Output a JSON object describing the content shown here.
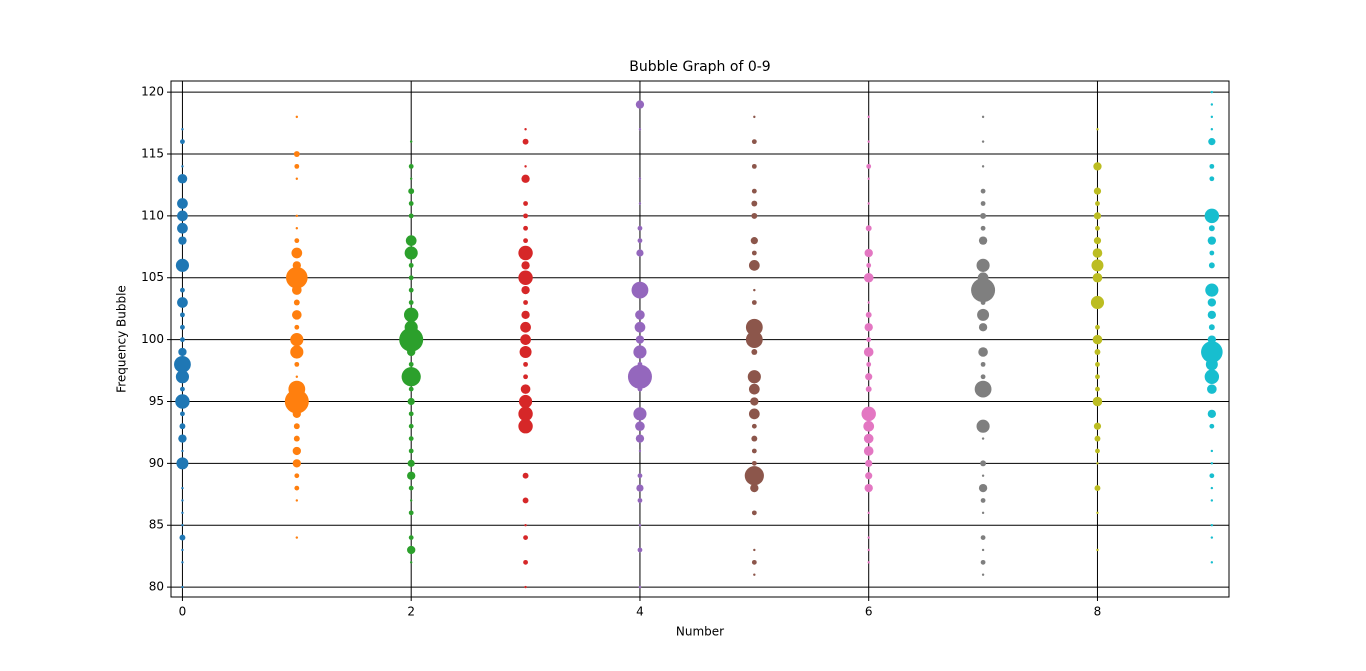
{
  "chart_data": {
    "type": "bubble",
    "title": "Bubble Graph of 0-9",
    "x_label": "Number",
    "y_label": "Frequency Bubble",
    "xlim": [
      -0.1,
      9.15
    ],
    "ylim": [
      79.2,
      120.9
    ],
    "xticks": [
      0,
      2,
      4,
      6,
      8
    ],
    "yticks": [
      80,
      85,
      90,
      95,
      100,
      105,
      110,
      115,
      120
    ],
    "grid": true,
    "series": [
      {
        "x": 0,
        "color": "#1f77b4",
        "values": [
          80,
          82,
          83,
          84,
          85,
          86,
          87,
          88,
          90,
          91,
          92,
          93,
          94,
          95,
          96,
          97,
          98,
          99,
          100,
          101,
          102,
          103,
          104,
          106,
          108,
          109,
          110,
          111,
          113,
          114,
          116,
          117
        ],
        "sizes": [
          1,
          1,
          1,
          6,
          1,
          1,
          1,
          1,
          25,
          1,
          12,
          6,
          4,
          36,
          4,
          30,
          49,
          12,
          4,
          4,
          4,
          20,
          4,
          30,
          12,
          20,
          20,
          20,
          16,
          1,
          4,
          1
        ]
      },
      {
        "x": 1,
        "color": "#ff7f0e",
        "values": [
          84,
          87,
          88,
          89,
          90,
          91,
          92,
          93,
          94,
          95,
          96,
          97,
          98,
          99,
          100,
          101,
          102,
          103,
          104,
          105,
          106,
          107,
          108,
          109,
          110,
          113,
          114,
          115,
          118
        ],
        "sizes": [
          1,
          1,
          4,
          4,
          12,
          12,
          6,
          6,
          12,
          100,
          49,
          1,
          4,
          30,
          30,
          4,
          16,
          6,
          16,
          81,
          12,
          20,
          4,
          1,
          1,
          1,
          4,
          6,
          1
        ]
      },
      {
        "x": 2,
        "color": "#2ca02c",
        "values": [
          82,
          83,
          84,
          86,
          87,
          88,
          89,
          90,
          91,
          92,
          93,
          94,
          95,
          96,
          97,
          98,
          99,
          100,
          101,
          102,
          103,
          104,
          105,
          106,
          107,
          108,
          110,
          111,
          112,
          113,
          114,
          116
        ],
        "sizes": [
          1,
          12,
          4,
          4,
          1,
          4,
          12,
          9,
          4,
          4,
          4,
          4,
          9,
          4,
          64,
          4,
          12,
          100,
          30,
          36,
          4,
          4,
          4,
          4,
          30,
          20,
          4,
          4,
          6,
          1,
          4,
          1
        ]
      },
      {
        "x": 3,
        "color": "#d62728",
        "values": [
          80,
          82,
          84,
          85,
          87,
          89,
          93,
          94,
          95,
          96,
          97,
          98,
          99,
          100,
          101,
          102,
          103,
          104,
          105,
          106,
          107,
          108,
          109,
          110,
          111,
          113,
          114,
          116,
          117
        ],
        "sizes": [
          1,
          4,
          4,
          1,
          6,
          6,
          36,
          36,
          30,
          16,
          4,
          4,
          25,
          20,
          20,
          12,
          4,
          12,
          36,
          12,
          36,
          4,
          4,
          4,
          4,
          12,
          1,
          6,
          1
        ]
      },
      {
        "x": 4,
        "color": "#9467bd",
        "values": [
          80,
          83,
          85,
          87,
          88,
          89,
          91,
          92,
          93,
          94,
          96,
          97,
          98,
          99,
          100,
          101,
          102,
          104,
          107,
          108,
          109,
          111,
          113,
          117,
          119
        ],
        "sizes": [
          1,
          4,
          1,
          4,
          9,
          4,
          1,
          12,
          16,
          30,
          4,
          100,
          4,
          30,
          12,
          20,
          16,
          49,
          9,
          4,
          4,
          1,
          1,
          1,
          12
        ]
      },
      {
        "x": 5,
        "color": "#8c564b",
        "values": [
          81,
          82,
          83,
          86,
          88,
          89,
          90,
          91,
          92,
          93,
          94,
          95,
          96,
          97,
          99,
          100,
          101,
          103,
          104,
          106,
          107,
          108,
          110,
          111,
          112,
          114,
          116,
          118
        ],
        "sizes": [
          1,
          4,
          1,
          4,
          12,
          64,
          4,
          4,
          6,
          4,
          20,
          12,
          20,
          30,
          6,
          49,
          49,
          4,
          1,
          20,
          4,
          9,
          6,
          6,
          4,
          4,
          4,
          1
        ]
      },
      {
        "x": 6,
        "color": "#e377c2",
        "values": [
          82,
          83,
          84,
          86,
          88,
          89,
          90,
          91,
          92,
          93,
          94,
          96,
          97,
          98,
          99,
          100,
          101,
          102,
          103,
          105,
          106,
          107,
          109,
          111,
          113,
          114,
          116,
          118
        ],
        "sizes": [
          1,
          1,
          1,
          1,
          12,
          9,
          9,
          16,
          16,
          20,
          36,
          6,
          9,
          4,
          16,
          4,
          12,
          6,
          1,
          16,
          4,
          12,
          6,
          1,
          1,
          4,
          1,
          1
        ]
      },
      {
        "x": 7,
        "color": "#7f7f7f",
        "values": [
          81,
          82,
          83,
          84,
          86,
          87,
          88,
          89,
          90,
          92,
          93,
          96,
          97,
          98,
          99,
          101,
          102,
          103,
          104,
          105,
          106,
          108,
          109,
          110,
          111,
          112,
          114,
          116,
          118
        ],
        "sizes": [
          1,
          4,
          1,
          4,
          1,
          4,
          12,
          1,
          6,
          1,
          30,
          49,
          4,
          4,
          16,
          12,
          25,
          4,
          100,
          20,
          30,
          12,
          4,
          6,
          4,
          4,
          1,
          1,
          1
        ]
      },
      {
        "x": 8,
        "color": "#bcbd22",
        "values": [
          83,
          86,
          88,
          90,
          91,
          92,
          93,
          95,
          96,
          97,
          98,
          99,
          100,
          101,
          103,
          105,
          106,
          107,
          108,
          109,
          110,
          111,
          112,
          114,
          117
        ],
        "sizes": [
          1,
          1,
          6,
          1,
          4,
          6,
          9,
          16,
          4,
          4,
          4,
          6,
          16,
          4,
          30,
          16,
          25,
          16,
          9,
          4,
          9,
          4,
          9,
          12,
          1
        ]
      },
      {
        "x": 9,
        "color": "#17becf",
        "values": [
          82,
          84,
          85,
          87,
          88,
          89,
          90,
          91,
          93,
          94,
          96,
          97,
          98,
          99,
          100,
          101,
          102,
          103,
          104,
          106,
          107,
          108,
          109,
          110,
          113,
          114,
          116,
          117,
          118,
          119,
          120
        ],
        "sizes": [
          1,
          1,
          1,
          1,
          1,
          4,
          1,
          1,
          4,
          12,
          16,
          36,
          25,
          81,
          12,
          6,
          12,
          12,
          30,
          6,
          4,
          12,
          6,
          36,
          4,
          4,
          9,
          1,
          1,
          1,
          1
        ]
      }
    ]
  }
}
